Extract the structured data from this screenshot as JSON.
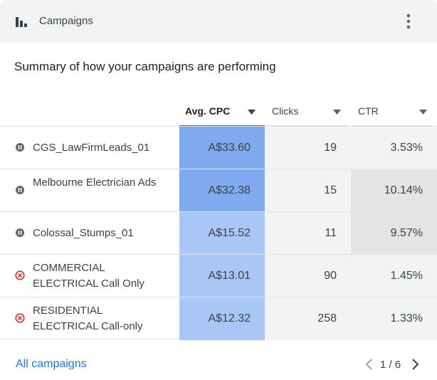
{
  "header": {
    "title": "Campaigns",
    "icon": "bar-chart-icon",
    "menu_icon": "more-vert-icon"
  },
  "subtitle": "Summary of how your campaigns are performing",
  "columns": [
    {
      "label": "Avg. CPC",
      "sorted": true
    },
    {
      "label": "Clicks",
      "sorted": false
    },
    {
      "label": "CTR",
      "sorted": false
    }
  ],
  "rows": [
    {
      "status": "paused",
      "name": "CGS_LawFirmLeads_01",
      "cpc": "A$33.60",
      "clicks": "19",
      "ctr": "3.53%",
      "cpc_color": "#7faaf0",
      "ctr_color": "#f1f3f4"
    },
    {
      "status": "paused",
      "name": "Melbourne Electrician Ads",
      "cpc": "A$32.38",
      "clicks": "15",
      "ctr": "10.14%",
      "cpc_color": "#80abf0",
      "ctr_color": "#e3e4e6"
    },
    {
      "status": "paused",
      "name": "Colossal_Stumps_01",
      "cpc": "A$15.52",
      "clicks": "11",
      "ctr": "9.57%",
      "cpc_color": "#a9c7f6",
      "ctr_color": "#e3e4e6"
    },
    {
      "status": "removed",
      "name": "COMMERCIAL ELECTRICAL Call Only",
      "cpc": "A$13.01",
      "clicks": "90",
      "ctr": "1.45%",
      "cpc_color": "#a9c7f6",
      "ctr_color": "#f1f3f4"
    },
    {
      "status": "removed",
      "name": "RESIDENTIAL ELECTRICAL Call-only",
      "cpc": "A$12.32",
      "clicks": "258",
      "ctr": "1.33%",
      "cpc_color": "#a9c7f6",
      "ctr_color": "#f1f3f4"
    }
  ],
  "footer": {
    "link": "All campaigns",
    "page": "1 / 6"
  },
  "colors": {
    "accent": "#1a73e8",
    "paused": "#5f6368",
    "removed": "#d93025"
  }
}
